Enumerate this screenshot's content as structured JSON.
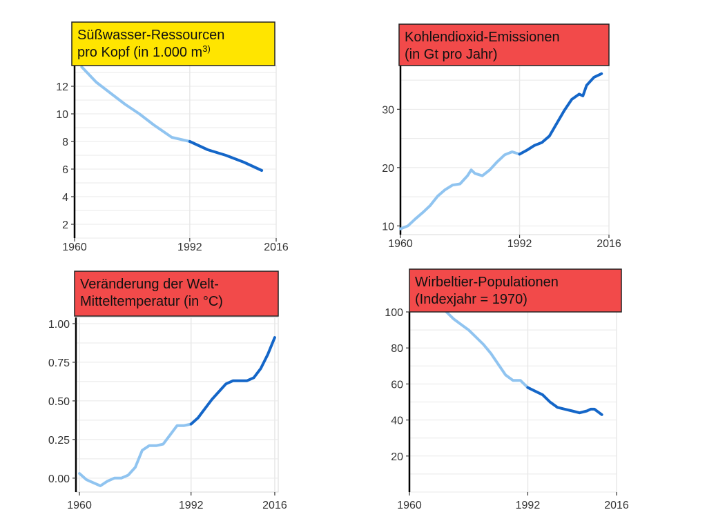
{
  "chart_data": [
    {
      "type": "line",
      "title_lines": [
        "Süßwasser-Ressourcen",
        "pro Kopf (in 1.000 m"
      ],
      "title_sup": "3)",
      "title_color": "#FFE500",
      "xlim": [
        1960,
        2016
      ],
      "ylim": [
        1,
        13.5
      ],
      "xticks": [
        1960,
        1992,
        2016
      ],
      "yticks": [
        2,
        4,
        6,
        8,
        10,
        12
      ],
      "ytick_labels": [
        "2",
        "4",
        "6",
        "8",
        "10",
        "12"
      ],
      "split_year": 1992,
      "x": [
        1962,
        1966,
        1970,
        1974,
        1978,
        1982,
        1987,
        1992,
        1997,
        2002,
        2007,
        2012
      ],
      "y": [
        13.4,
        12.3,
        11.5,
        10.7,
        10.0,
        9.2,
        8.3,
        8.0,
        7.4,
        7.0,
        6.5,
        5.9
      ]
    },
    {
      "type": "line",
      "title_lines": [
        "Kohlendioxid-Emissionen",
        "(in Gt pro Jahr)"
      ],
      "title_sup": "",
      "title_color": "#F24A4A",
      "xlim": [
        1960,
        2016
      ],
      "ylim": [
        8.5,
        37.5
      ],
      "xticks": [
        1960,
        1992,
        2016
      ],
      "yticks": [
        10,
        20,
        30
      ],
      "ytick_labels": [
        "10",
        "20",
        "30"
      ],
      "split_year": 1992,
      "x": [
        1960,
        1962,
        1964,
        1966,
        1968,
        1970,
        1972,
        1974,
        1976,
        1978,
        1979,
        1980,
        1982,
        1984,
        1986,
        1988,
        1990,
        1992,
        1994,
        1996,
        1998,
        2000,
        2002,
        2004,
        2006,
        2008,
        2009,
        2010,
        2012,
        2014
      ],
      "y": [
        9.5,
        10.0,
        11.2,
        12.3,
        13.5,
        15.1,
        16.2,
        17.0,
        17.2,
        18.6,
        19.6,
        19.0,
        18.6,
        19.6,
        21.0,
        22.2,
        22.7,
        22.3,
        23.0,
        23.8,
        24.3,
        25.4,
        27.6,
        29.8,
        31.7,
        32.6,
        32.3,
        34.1,
        35.5,
        36.1
      ]
    },
    {
      "type": "line",
      "title_lines": [
        "Veränderung der Welt-",
        "Mitteltemperatur (in °C)"
      ],
      "title_sup": "",
      "title_color": "#F24A4A",
      "xlim": [
        1959,
        2017
      ],
      "ylim": [
        -0.09,
        1.04
      ],
      "xticks": [
        1960,
        1992,
        2016
      ],
      "yticks": [
        0.0,
        0.25,
        0.5,
        0.75,
        1.0
      ],
      "ytick_labels": [
        "0.00",
        "0.25",
        "0.50",
        "0.75",
        "1.00"
      ],
      "split_year": 1992,
      "x": [
        1960,
        1962,
        1964,
        1966,
        1968,
        1970,
        1972,
        1974,
        1976,
        1978,
        1980,
        1982,
        1984,
        1986,
        1988,
        1990,
        1992,
        1994,
        1996,
        1998,
        2000,
        2002,
        2004,
        2006,
        2008,
        2010,
        2012,
        2014,
        2016
      ],
      "y": [
        0.03,
        -0.01,
        -0.03,
        -0.05,
        -0.02,
        0.0,
        0.0,
        0.02,
        0.07,
        0.18,
        0.21,
        0.21,
        0.22,
        0.28,
        0.34,
        0.34,
        0.35,
        0.39,
        0.45,
        0.51,
        0.56,
        0.61,
        0.63,
        0.63,
        0.63,
        0.65,
        0.71,
        0.8,
        0.91
      ]
    },
    {
      "type": "line",
      "title_lines": [
        "Wirbeltier-Populationen",
        "(Indexjahr = 1970)"
      ],
      "title_sup": "",
      "title_color": "#F24A4A",
      "xlim": [
        1960,
        2016
      ],
      "ylim": [
        0,
        100
      ],
      "xticks": [
        1960,
        1992,
        2016
      ],
      "yticks": [
        20,
        40,
        60,
        80,
        100
      ],
      "ytick_labels": [
        "20",
        "40",
        "60",
        "80",
        "100"
      ],
      "split_year": 1992,
      "x": [
        1970,
        1972,
        1974,
        1976,
        1978,
        1980,
        1982,
        1984,
        1986,
        1988,
        1990,
        1992,
        1994,
        1996,
        1998,
        2000,
        2002,
        2004,
        2006,
        2008,
        2009,
        2010,
        2012
      ],
      "y": [
        100,
        96,
        93,
        90,
        86,
        82,
        77,
        71,
        65,
        62,
        62,
        58,
        56,
        54,
        50,
        47,
        46,
        45,
        44,
        45,
        46,
        46,
        43
      ]
    }
  ],
  "colors": {
    "line_light": "#90C4F0",
    "line_dark": "#1466C8",
    "grid": "#E8E8E8",
    "axis": "#000000"
  }
}
